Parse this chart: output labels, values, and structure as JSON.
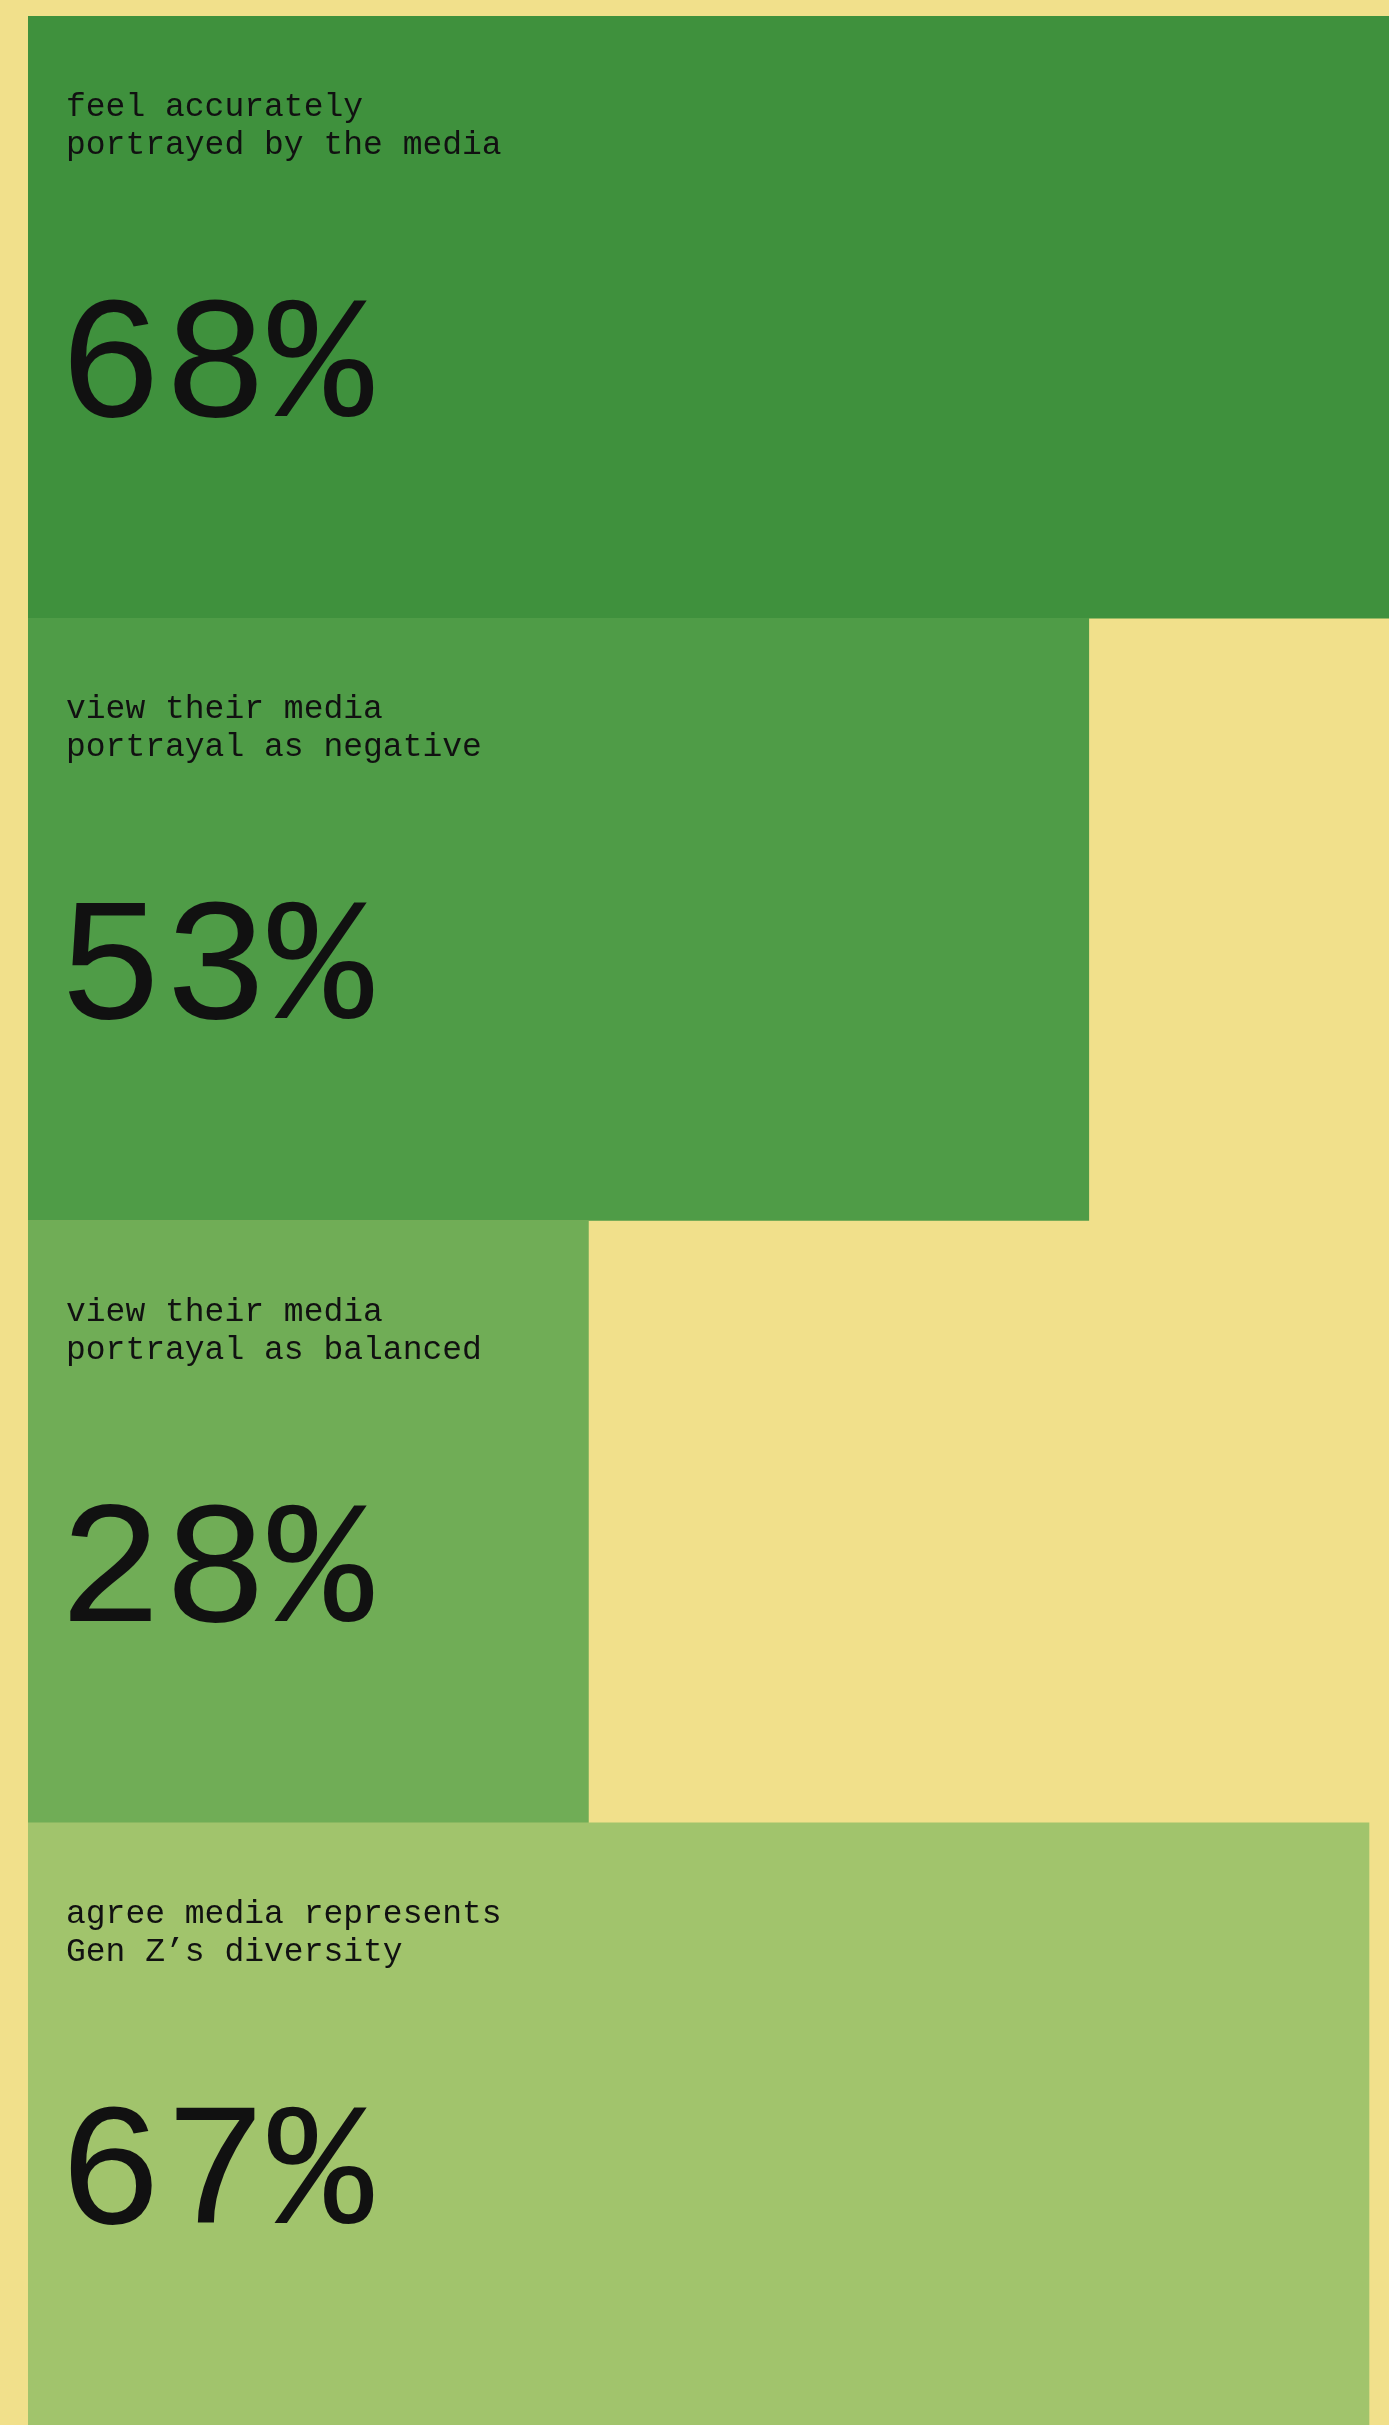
{
  "chart_data": {
    "type": "bar",
    "orientation": "horizontal",
    "categories": [
      "feel accurately portrayed by the media",
      "view their media portrayal as negative",
      "view their media portrayal as balanced",
      "agree media represents Gen Z’s diversity"
    ],
    "values": [
      68,
      53,
      28,
      67
    ],
    "colors": [
      "#3f913d",
      "#4f9c47",
      "#70ad56",
      "#a1c46c"
    ],
    "value_labels": [
      "68%",
      "53%",
      "28%",
      "67%"
    ],
    "xlim": [
      0,
      68
    ]
  }
}
